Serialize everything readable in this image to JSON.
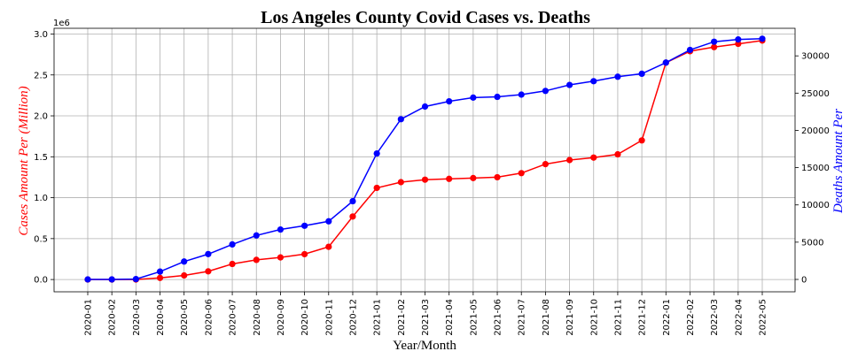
{
  "chart_data": {
    "type": "line",
    "title": "Los Angeles County Covid Cases vs. Deaths",
    "xlabel": "Year/Month",
    "ylabel_left": "Cases Amount Per (Million)",
    "ylabel_right": "Deaths Amount Per",
    "left_axis_offset_label": "1e6",
    "categories": [
      "2020-01",
      "2020-02",
      "2020-03",
      "2020-04",
      "2020-05",
      "2020-06",
      "2020-07",
      "2020-08",
      "2020-09",
      "2020-10",
      "2020-11",
      "2020-12",
      "2021-01",
      "2021-02",
      "2021-03",
      "2021-04",
      "2021-05",
      "2021-06",
      "2021-07",
      "2021-08",
      "2021-09",
      "2021-10",
      "2021-11",
      "2021-12",
      "2022-01",
      "2022-02",
      "2022-03",
      "2022-04",
      "2022-05"
    ],
    "y_left_ticks": [
      "0.0",
      "0.5",
      "1.0",
      "1.5",
      "2.0",
      "2.5",
      "3.0"
    ],
    "y_right_ticks": [
      "0",
      "5000",
      "10000",
      "15000",
      "20000",
      "25000",
      "30000"
    ],
    "y_left_lim": [
      -0.15,
      3.07
    ],
    "y_right_lim": [
      -1660,
      33700
    ],
    "grid": true,
    "series": [
      {
        "axis": "left",
        "color": "#ff0000",
        "values": [
          0.0,
          0.0,
          0.0,
          0.02,
          0.05,
          0.1,
          0.19,
          0.24,
          0.27,
          0.31,
          0.4,
          0.77,
          1.12,
          1.19,
          1.22,
          1.23,
          1.24,
          1.25,
          1.3,
          1.41,
          1.46,
          1.49,
          1.53,
          1.7,
          2.65,
          2.79,
          2.84,
          2.88,
          2.92
        ]
      },
      {
        "axis": "right",
        "color": "#0000ff",
        "values": [
          0,
          0,
          50,
          1050,
          2400,
          3400,
          4700,
          5900,
          6700,
          7200,
          7800,
          10500,
          16900,
          21500,
          23200,
          23900,
          24400,
          24500,
          24800,
          25300,
          26100,
          26600,
          27200,
          27600,
          29100,
          30800,
          31900,
          32200,
          32300
        ]
      }
    ]
  }
}
